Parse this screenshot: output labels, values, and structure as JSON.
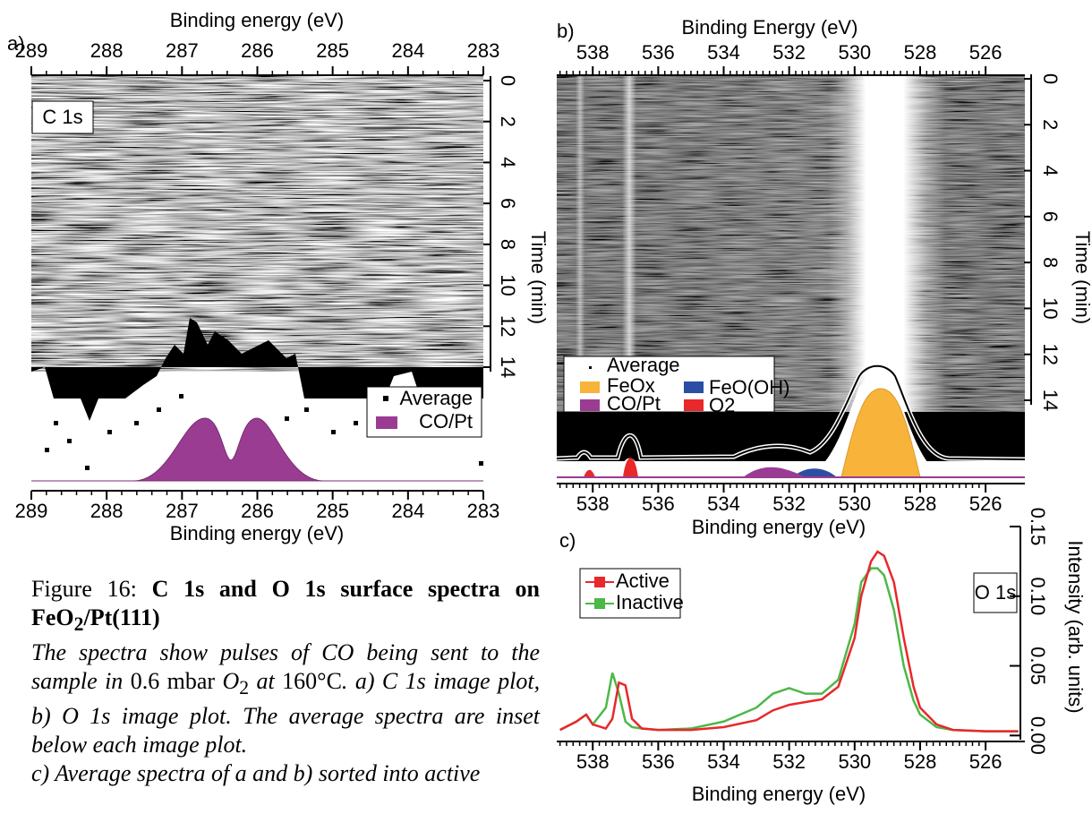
{
  "panels": {
    "a": {
      "label": "a)",
      "top_axis_title": "Binding energy (eV)",
      "bottom_axis_title": "Binding energy (eV)",
      "xlim": [
        289,
        283
      ],
      "xticks": [
        289,
        288,
        287,
        286,
        285,
        284,
        283
      ],
      "time_axis_title": "Time (min)",
      "time_lim": [
        0,
        14
      ],
      "time_ticks": [
        0,
        2,
        4,
        6,
        8,
        10,
        12,
        14
      ],
      "region": "C 1s",
      "legend": [
        "Average",
        "CO/Pt"
      ]
    },
    "b": {
      "label": "b)",
      "top_axis_title": "Binding Energy (eV)",
      "bottom_axis_title": "Binding energy (eV)",
      "xlim": [
        539.1,
        524.8
      ],
      "xticks": [
        538,
        536,
        534,
        532,
        530,
        528,
        526
      ],
      "time_axis_title": "Time (min)",
      "time_lim": [
        0,
        14
      ],
      "time_ticks": [
        0,
        2,
        4,
        6,
        8,
        10,
        12,
        14
      ],
      "legend": [
        "Average",
        "FeOx",
        "FeO(OH)",
        "CO/Pt",
        "O2"
      ]
    }
  },
  "chart_data": {
    "type": "line",
    "label": "c)",
    "region": "O 1s",
    "x_axis_title": "Binding energy (eV)",
    "y_axis_title": "Intensity (arb. units)",
    "xlim": [
      539.1,
      524.8
    ],
    "xticks": [
      538,
      536,
      534,
      532,
      530,
      528,
      526
    ],
    "ylim": [
      -0.003,
      0.15
    ],
    "yticks": [
      {
        "value": 0,
        "label": "0.00"
      },
      0.05,
      {
        "value": 0.1,
        "label": "0.10"
      },
      0.15
    ],
    "x": [
      539,
      538.5,
      538.2,
      538,
      537.6,
      537.4,
      537.2,
      537,
      536.8,
      536.5,
      536,
      535,
      534,
      533,
      532.5,
      532,
      531.5,
      531,
      530.5,
      530,
      529.8,
      529.5,
      529.3,
      529.1,
      528.8,
      528.5,
      528.2,
      528,
      527.5,
      527,
      526,
      525
    ],
    "series": [
      {
        "name": "Active",
        "color": "#e8282b",
        "values": [
          0.004,
          0.01,
          0.015,
          0.008,
          0.005,
          0.012,
          0.038,
          0.036,
          0.012,
          0.005,
          0.004,
          0.004,
          0.006,
          0.011,
          0.018,
          0.022,
          0.024,
          0.026,
          0.035,
          0.07,
          0.1,
          0.125,
          0.132,
          0.129,
          0.11,
          0.07,
          0.035,
          0.02,
          0.008,
          0.004,
          0.003,
          0.003
        ]
      },
      {
        "name": "Inactive",
        "color": "#4cb848",
        "values": [
          0.004,
          0.01,
          0.015,
          0.008,
          0.02,
          0.045,
          0.03,
          0.01,
          0.006,
          0.005,
          0.004,
          0.005,
          0.01,
          0.02,
          0.03,
          0.034,
          0.03,
          0.03,
          0.04,
          0.08,
          0.11,
          0.12,
          0.12,
          0.115,
          0.09,
          0.05,
          0.025,
          0.015,
          0.006,
          0.004,
          0.003,
          0.003
        ]
      }
    ]
  },
  "caption": {
    "label": "Figure 16:",
    "title": [
      "C 1s and O 1s surface spectra on FeO",
      "2",
      "/Pt(111)"
    ],
    "body": [
      "The spectra show pulses of CO being sent to the sample in",
      "0.6 mbar",
      "O",
      "2",
      "at",
      "160°C",
      ". a) C 1s image plot, b) O 1s image plot. The average spectra are inset below each image plot."
    ],
    "note": "c) Average spectra of a and b) sorted into active"
  }
}
